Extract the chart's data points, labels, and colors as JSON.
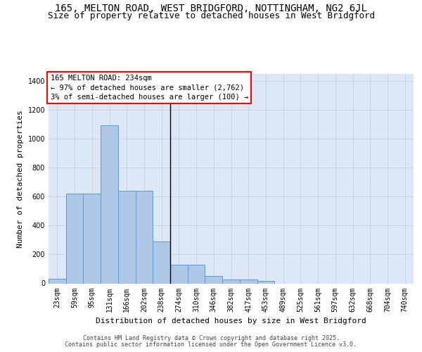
{
  "title_line1": "165, MELTON ROAD, WEST BRIDGFORD, NOTTINGHAM, NG2 6JL",
  "title_line2": "Size of property relative to detached houses in West Bridgford",
  "xlabel": "Distribution of detached houses by size in West Bridgford",
  "ylabel": "Number of detached properties",
  "categories": [
    "23sqm",
    "59sqm",
    "95sqm",
    "131sqm",
    "166sqm",
    "202sqm",
    "238sqm",
    "274sqm",
    "310sqm",
    "346sqm",
    "382sqm",
    "417sqm",
    "453sqm",
    "489sqm",
    "525sqm",
    "561sqm",
    "597sqm",
    "632sqm",
    "668sqm",
    "704sqm",
    "740sqm"
  ],
  "values": [
    30,
    620,
    620,
    1095,
    640,
    640,
    290,
    130,
    130,
    50,
    25,
    25,
    15,
    0,
    0,
    0,
    0,
    0,
    0,
    0,
    0
  ],
  "bar_color": "#aec6e8",
  "bar_edge_color": "#5b9bd5",
  "vline_x": 6.5,
  "annotation_box_text": "165 MELTON ROAD: 234sqm\n← 97% of detached houses are smaller (2,762)\n3% of semi-detached houses are larger (100) →",
  "ylim": [
    0,
    1450
  ],
  "yticks": [
    0,
    200,
    400,
    600,
    800,
    1000,
    1200,
    1400
  ],
  "grid_color": "#c8d4e8",
  "background_color": "#dce8f8",
  "footer_line1": "Contains HM Land Registry data © Crown copyright and database right 2025.",
  "footer_line2": "Contains public sector information licensed under the Open Government Licence v3.0.",
  "title_fontsize": 10,
  "subtitle_fontsize": 9,
  "axis_label_fontsize": 8,
  "tick_fontsize": 7,
  "annotation_fontsize": 7.5,
  "footer_fontsize": 6
}
